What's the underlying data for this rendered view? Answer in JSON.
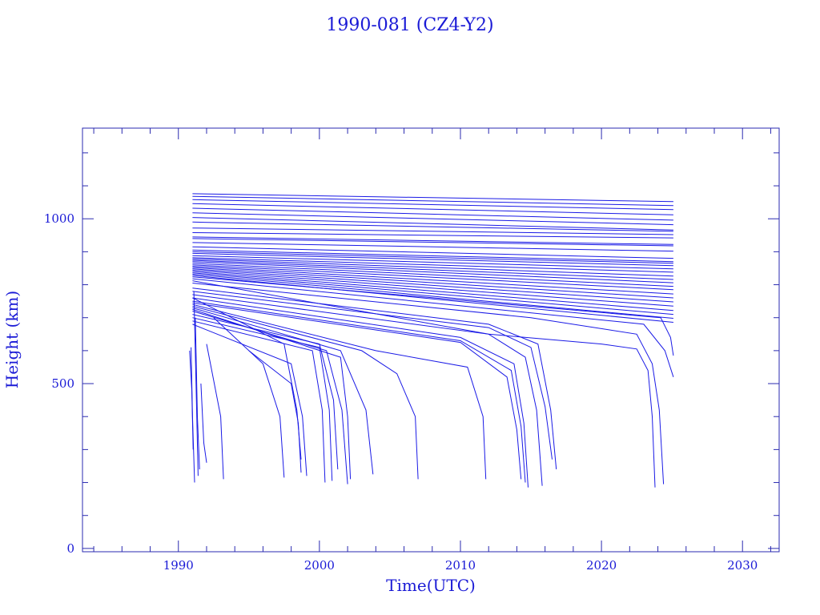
{
  "chart_data": {
    "type": "line",
    "title": "1990-081 (CZ4-Y2)",
    "xlabel": "Time(UTC)",
    "ylabel": "Height (km)",
    "xlim": [
      1983.2,
      2032.6
    ],
    "ylim": [
      -10,
      1275
    ],
    "xticks": [
      1990,
      2000,
      2010,
      2020,
      2030
    ],
    "xtick_labels": [
      "1990",
      "2000",
      "2010",
      "2020",
      "2030"
    ],
    "yticks": [
      0,
      500,
      1000
    ],
    "ytick_labels": [
      "0",
      "500",
      "1000"
    ],
    "legend": "none",
    "grid": false,
    "color": "#1a1ae6",
    "series": [
      {
        "x": [
          1991,
          2025.1
        ],
        "y": [
          1076,
          1052
        ]
      },
      {
        "x": [
          1991,
          2025.1
        ],
        "y": [
          1068,
          1040
        ]
      },
      {
        "x": [
          1991,
          2025.1
        ],
        "y": [
          1058,
          1028
        ]
      },
      {
        "x": [
          1991,
          2025.1
        ],
        "y": [
          1046,
          1012
        ]
      },
      {
        "x": [
          1991,
          2025.1
        ],
        "y": [
          1032,
          996
        ]
      },
      {
        "x": [
          1991,
          2025.1
        ],
        "y": [
          1018,
          982
        ]
      },
      {
        "x": [
          1991,
          2025.1
        ],
        "y": [
          1004,
          966
        ]
      },
      {
        "x": [
          1991,
          2025.1
        ],
        "y": [
          990,
          962
        ]
      },
      {
        "x": [
          1991,
          2025.1
        ],
        "y": [
          972,
          952
        ]
      },
      {
        "x": [
          1991,
          2025.1
        ],
        "y": [
          958,
          942
        ]
      },
      {
        "x": [
          1991,
          2025.1
        ],
        "y": [
          945,
          922
        ]
      },
      {
        "x": [
          1991,
          2025.1
        ],
        "y": [
          940,
          918
        ]
      },
      {
        "x": [
          1991,
          2025.1
        ],
        "y": [
          928,
          902
        ]
      },
      {
        "x": [
          1991,
          2025.1
        ],
        "y": [
          915,
          880
        ]
      },
      {
        "x": [
          1991,
          2025.1
        ],
        "y": [
          905,
          870
        ]
      },
      {
        "x": [
          1991,
          2025.1
        ],
        "y": [
          900,
          865
        ]
      },
      {
        "x": [
          1991,
          2025.1
        ],
        "y": [
          895,
          858
        ]
      },
      {
        "x": [
          1991,
          2025.1
        ],
        "y": [
          888,
          848
        ]
      },
      {
        "x": [
          1991,
          2025.1
        ],
        "y": [
          882,
          838
        ]
      },
      {
        "x": [
          1991,
          2025.1
        ],
        "y": [
          878,
          826
        ]
      },
      {
        "x": [
          1991,
          2025.1
        ],
        "y": [
          874,
          816
        ]
      },
      {
        "x": [
          1991,
          2025.1
        ],
        "y": [
          870,
          806
        ]
      },
      {
        "x": [
          1991,
          2025.1
        ],
        "y": [
          865,
          795
        ]
      },
      {
        "x": [
          1991,
          2025.1
        ],
        "y": [
          860,
          785
        ]
      },
      {
        "x": [
          1991,
          2025.1
        ],
        "y": [
          856,
          772
        ]
      },
      {
        "x": [
          1991,
          2025.1
        ],
        "y": [
          852,
          760
        ]
      },
      {
        "x": [
          1991,
          2025.1
        ],
        "y": [
          848,
          748
        ]
      },
      {
        "x": [
          1991,
          2025.1
        ],
        "y": [
          844,
          735
        ]
      },
      {
        "x": [
          1991,
          2025.1
        ],
        "y": [
          840,
          722
        ]
      },
      {
        "x": [
          1991,
          2025.1
        ],
        "y": [
          836,
          710
        ]
      },
      {
        "x": [
          1991,
          2025.1
        ],
        "y": [
          832,
          698
        ]
      },
      {
        "x": [
          1991,
          2025.1
        ],
        "y": [
          828,
          686
        ]
      },
      {
        "x": [
          1991,
          2024.2,
          2024.9,
          2025.1
        ],
        "y": [
          824,
          700,
          640,
          585
        ]
      },
      {
        "x": [
          1991,
          2023.0,
          2024.5,
          2025.1
        ],
        "y": [
          818,
          680,
          600,
          520
        ]
      },
      {
        "x": [
          1991,
          2012,
          2020,
          2022.5,
          2023.3,
          2023.6,
          2023.8
        ],
        "y": [
          812,
          650,
          620,
          605,
          540,
          400,
          185
        ]
      },
      {
        "x": [
          1991,
          2015,
          2022.5,
          2023.6,
          2024.1,
          2024.4
        ],
        "y": [
          805,
          700,
          650,
          560,
          420,
          195
        ]
      },
      {
        "x": [
          1991,
          2012,
          2015.5,
          2016.4,
          2016.8
        ],
        "y": [
          790,
          680,
          620,
          420,
          240
        ]
      },
      {
        "x": [
          1991,
          2012,
          2015.0,
          2016.0,
          2016.5
        ],
        "y": [
          780,
          670,
          610,
          430,
          270
        ]
      },
      {
        "x": [
          1991,
          2012,
          2014.6,
          2015.4,
          2015.8
        ],
        "y": [
          770,
          650,
          580,
          420,
          190
        ]
      },
      {
        "x": [
          1991,
          2010,
          2013.8,
          2014.5,
          2014.8
        ],
        "y": [
          760,
          640,
          560,
          380,
          185
        ]
      },
      {
        "x": [
          1991,
          2010,
          2013.6,
          2014.3,
          2014.6
        ],
        "y": [
          750,
          630,
          540,
          370,
          200
        ]
      },
      {
        "x": [
          1991,
          2010,
          2013.3,
          2014.0,
          2014.3
        ],
        "y": [
          745,
          625,
          520,
          360,
          210
        ]
      },
      {
        "x": [
          1991,
          2004,
          2010.5,
          2011.6,
          2011.8
        ],
        "y": [
          740,
          600,
          550,
          400,
          210
        ]
      },
      {
        "x": [
          1991,
          2003,
          2005.5,
          2006.8,
          2007.0
        ],
        "y": [
          735,
          600,
          530,
          400,
          210
        ]
      },
      {
        "x": [
          1991,
          2001.5,
          2003.3,
          2003.8
        ],
        "y": [
          730,
          600,
          420,
          225
        ]
      },
      {
        "x": [
          1991,
          2001.5,
          2002.0,
          2002.2
        ],
        "y": [
          725,
          580,
          400,
          210
        ]
      },
      {
        "x": [
          1991,
          2000.5,
          2001.6,
          2002.0
        ],
        "y": [
          720,
          600,
          420,
          195
        ]
      },
      {
        "x": [
          1991,
          2000,
          2001.0,
          2001.3
        ],
        "y": [
          710,
          620,
          450,
          240
        ]
      },
      {
        "x": [
          1991,
          2000,
          2000.7,
          2000.9
        ],
        "y": [
          700,
          610,
          420,
          205
        ]
      },
      {
        "x": [
          1991,
          1999.5,
          2000.2,
          2000.4
        ],
        "y": [
          690,
          600,
          420,
          200
        ]
      },
      {
        "x": [
          1991,
          1998,
          1998.8,
          1999.1
        ],
        "y": [
          680,
          560,
          400,
          220
        ]
      },
      {
        "x": [
          1991,
          1997.5,
          1998.4,
          1998.7
        ],
        "y": [
          760,
          620,
          420,
          270
        ]
      },
      {
        "x": [
          1995,
          1998.0,
          1998.5,
          1998.7
        ],
        "y": [
          600,
          500,
          380,
          230
        ]
      },
      {
        "x": [
          1992.5,
          1996,
          1997.2,
          1997.5
        ],
        "y": [
          700,
          560,
          400,
          215
        ]
      },
      {
        "x": [
          1992.0,
          1993.0,
          1993.2
        ],
        "y": [
          620,
          400,
          210
        ]
      },
      {
        "x": [
          1991.6,
          1991.8,
          1992.0
        ],
        "y": [
          500,
          320,
          260
        ]
      },
      {
        "x": [
          1991.2,
          1991.35,
          1991.5
        ],
        "y": [
          700,
          400,
          240
        ]
      },
      {
        "x": [
          1990.9,
          1991.0,
          1991.15
        ],
        "y": [
          610,
          400,
          200
        ]
      },
      {
        "x": [
          1990.8,
          1990.95,
          1991.05
        ],
        "y": [
          600,
          480,
          300
        ]
      },
      {
        "x": [
          1991.1,
          1991.25,
          1991.4
        ],
        "y": [
          780,
          500,
          220
        ]
      }
    ]
  }
}
